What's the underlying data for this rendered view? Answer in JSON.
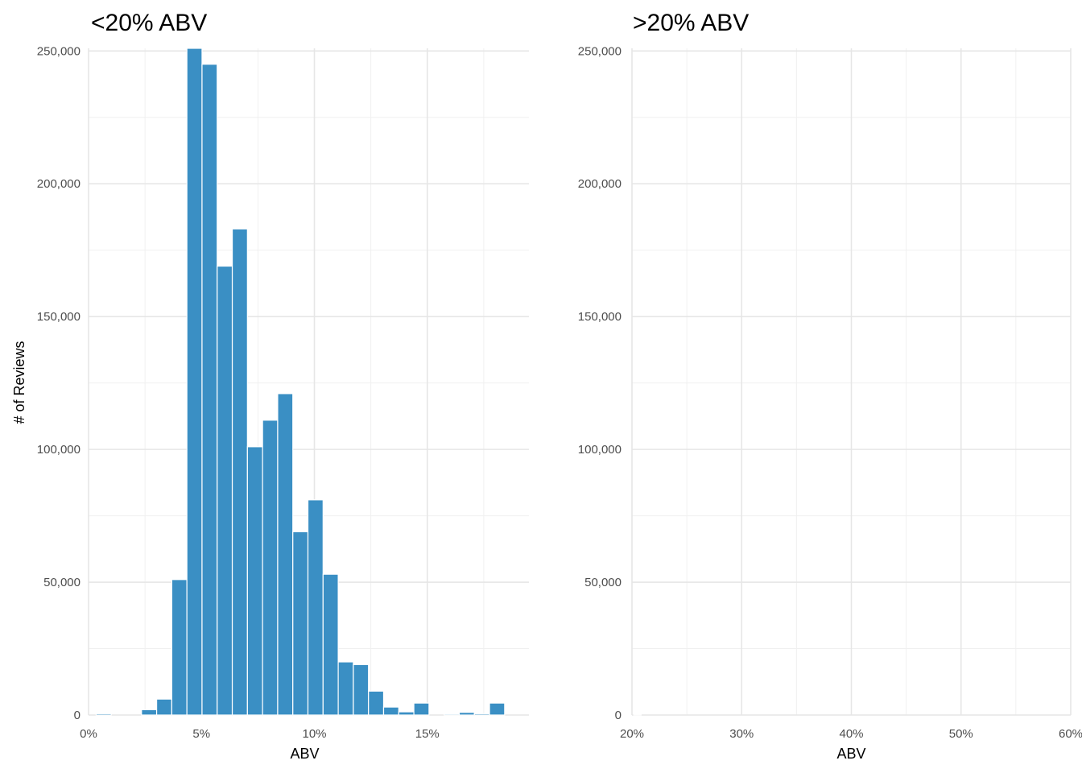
{
  "chart_data": [
    {
      "type": "bar",
      "title": "<20% ABV",
      "xlabel": "ABV",
      "ylabel": "# of Reviews",
      "xlim": [
        0,
        19.5
      ],
      "ylim": [
        0,
        251000
      ],
      "x_ticks": [
        "0%",
        "5%",
        "10%",
        "15%"
      ],
      "x_tick_values": [
        0,
        5,
        10,
        15
      ],
      "y_ticks": [
        "0",
        "50,000",
        "100,000",
        "150,000",
        "200,000",
        "250,000"
      ],
      "y_tick_values": [
        0,
        50000,
        100000,
        150000,
        200000,
        250000
      ],
      "bar_color": "#3a8fc4",
      "bin_width": 0.67,
      "bins": [
        {
          "x": 0.67,
          "value": 500
        },
        {
          "x": 2.68,
          "value": 2000
        },
        {
          "x": 3.35,
          "value": 6000
        },
        {
          "x": 4.02,
          "value": 51000
        },
        {
          "x": 4.69,
          "value": 251000
        },
        {
          "x": 5.36,
          "value": 245000
        },
        {
          "x": 6.03,
          "value": 169000
        },
        {
          "x": 6.7,
          "value": 183000
        },
        {
          "x": 7.37,
          "value": 101000
        },
        {
          "x": 8.04,
          "value": 111000
        },
        {
          "x": 8.71,
          "value": 121000
        },
        {
          "x": 9.38,
          "value": 69000
        },
        {
          "x": 10.05,
          "value": 81000
        },
        {
          "x": 10.72,
          "value": 53000
        },
        {
          "x": 11.39,
          "value": 20000
        },
        {
          "x": 12.06,
          "value": 19000
        },
        {
          "x": 12.73,
          "value": 9000
        },
        {
          "x": 13.4,
          "value": 3000
        },
        {
          "x": 14.07,
          "value": 1200
        },
        {
          "x": 14.74,
          "value": 4500
        },
        {
          "x": 16.08,
          "value": 400
        },
        {
          "x": 16.75,
          "value": 1000
        },
        {
          "x": 17.42,
          "value": 500
        },
        {
          "x": 18.09,
          "value": 4500
        }
      ]
    },
    {
      "type": "bar",
      "title": ">20% ABV",
      "xlabel": "ABV",
      "ylabel": "",
      "xlim": [
        20,
        60
      ],
      "ylim": [
        0,
        251000
      ],
      "x_ticks": [
        "20%",
        "30%",
        "40%",
        "50%",
        "60%"
      ],
      "x_tick_values": [
        20,
        30,
        40,
        50,
        60
      ],
      "y_ticks": [
        "0",
        "50,000",
        "100,000",
        "150,000",
        "200,000",
        "250,000"
      ],
      "y_tick_values": [
        0,
        50000,
        100000,
        150000,
        200000,
        250000
      ],
      "bar_color": "#3a8fc4",
      "bin_width": 0.67,
      "bins": [
        {
          "x": 20.5,
          "value": 100
        }
      ]
    }
  ]
}
